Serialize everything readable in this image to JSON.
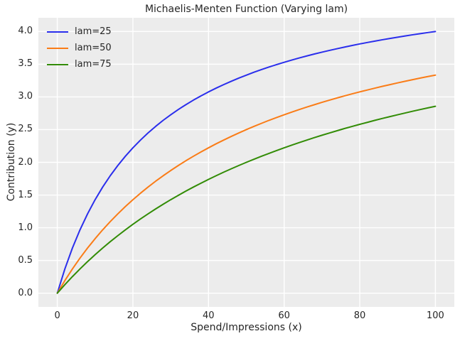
{
  "figure": {
    "background": "#ffffff",
    "plot_background": "#ececec",
    "grid_color": "#ffffff",
    "text_color": "#262626"
  },
  "chart_data": {
    "type": "line",
    "title": "Michaelis-Menten Function (Varying lam)",
    "xlabel": "Spend/Impressions (x)",
    "ylabel": "Contribution (y)",
    "xlim": [
      -5,
      105
    ],
    "ylim": [
      -0.21,
      4.21
    ],
    "grid": true,
    "legend_position": "upper-left",
    "xticks": [
      0,
      20,
      40,
      60,
      80,
      100
    ],
    "xtick_labels": [
      "0",
      "20",
      "40",
      "60",
      "80",
      "100"
    ],
    "yticks": [
      0,
      0.5,
      1,
      1.5,
      2,
      2.5,
      3,
      3.5,
      4
    ],
    "ytick_labels": [
      "0.0",
      "0.5",
      "1.0",
      "1.5",
      "2.0",
      "2.5",
      "3.0",
      "3.5",
      "4.0"
    ],
    "x": [
      0,
      2,
      4,
      6,
      8,
      10,
      12,
      14,
      16,
      18,
      20,
      22,
      24,
      26,
      28,
      30,
      32,
      34,
      36,
      38,
      40,
      42,
      44,
      46,
      48,
      50,
      52,
      54,
      56,
      58,
      60,
      62,
      64,
      66,
      68,
      70,
      72,
      74,
      76,
      78,
      80,
      82,
      84,
      86,
      88,
      90,
      92,
      94,
      96,
      98,
      100
    ],
    "series": [
      {
        "name": "lam=25",
        "color": "#2a2eec",
        "values": [
          0,
          0.37,
          0.69,
          0.968,
          1.212,
          1.429,
          1.622,
          1.795,
          1.951,
          2.093,
          2.222,
          2.34,
          2.449,
          2.549,
          2.642,
          2.727,
          2.807,
          2.881,
          2.951,
          3.016,
          3.077,
          3.134,
          3.188,
          3.239,
          3.288,
          3.333,
          3.377,
          3.418,
          3.457,
          3.494,
          3.529,
          3.563,
          3.596,
          3.626,
          3.656,
          3.684,
          3.711,
          3.737,
          3.762,
          3.786,
          3.81,
          3.832,
          3.853,
          3.874,
          3.894,
          3.913,
          3.932,
          3.95,
          3.967,
          3.984,
          4.0
        ]
      },
      {
        "name": "lam=50",
        "color": "#fa7c17",
        "values": [
          0,
          0.192,
          0.37,
          0.536,
          0.69,
          0.833,
          0.968,
          1.094,
          1.212,
          1.324,
          1.429,
          1.528,
          1.622,
          1.711,
          1.795,
          1.875,
          1.951,
          2.024,
          2.093,
          2.159,
          2.222,
          2.283,
          2.34,
          2.396,
          2.449,
          2.5,
          2.549,
          2.596,
          2.642,
          2.685,
          2.727,
          2.768,
          2.807,
          2.845,
          2.881,
          2.917,
          2.951,
          2.984,
          3.016,
          3.047,
          3.077,
          3.106,
          3.134,
          3.162,
          3.188,
          3.214,
          3.239,
          3.264,
          3.288,
          3.311,
          3.333
        ]
      },
      {
        "name": "lam=75",
        "color": "#328c06",
        "values": [
          0,
          0.13,
          0.253,
          0.37,
          0.482,
          0.588,
          0.69,
          0.787,
          0.879,
          0.968,
          1.053,
          1.134,
          1.212,
          1.287,
          1.359,
          1.429,
          1.495,
          1.56,
          1.622,
          1.681,
          1.739,
          1.795,
          1.849,
          1.901,
          1.951,
          2.0,
          2.047,
          2.093,
          2.137,
          2.18,
          2.222,
          2.263,
          2.302,
          2.34,
          2.378,
          2.414,
          2.449,
          2.483,
          2.517,
          2.549,
          2.581,
          2.611,
          2.642,
          2.671,
          2.699,
          2.727,
          2.754,
          2.781,
          2.807,
          2.832,
          2.857
        ]
      }
    ]
  }
}
